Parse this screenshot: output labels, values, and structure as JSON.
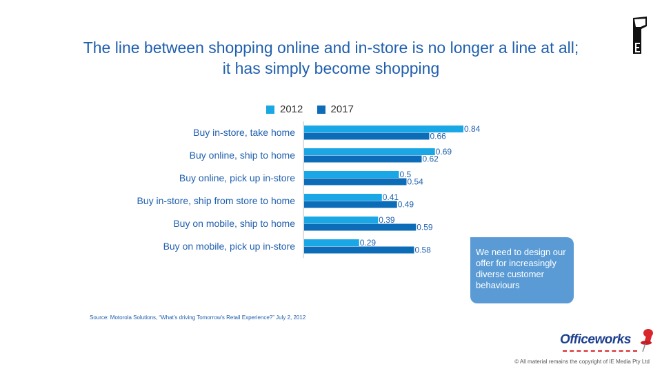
{
  "title_line1": "The line between shopping online and in-store is no longer a line at all;",
  "title_line2": "it has simply become shopping",
  "callout_text": "We need to design our offer for increasingly diverse customer behaviours",
  "source": "Source: Motorola Solutions, “What's driving Tomorrow's Retail Experience?” July 2, 2012",
  "copyright": "© All material remains the copyright of IE Media Pty Ltd",
  "logo_text": "Officeworks",
  "colors": {
    "s2012": "#1aa7e6",
    "s2017": "#0d6cb8",
    "callout": "#5a9bd5"
  },
  "chart_data": {
    "type": "bar",
    "orientation": "horizontal",
    "categories": [
      "Buy in-store, take home",
      "Buy online, ship to home",
      "Buy online, pick up in-store",
      "Buy in-store, ship from store to home",
      "Buy on mobile, ship to home",
      "Buy on mobile, pick up in-store"
    ],
    "series": [
      {
        "name": "2012",
        "values": [
          0.84,
          0.69,
          0.5,
          0.41,
          0.39,
          0.29
        ]
      },
      {
        "name": "2017",
        "values": [
          0.66,
          0.62,
          0.54,
          0.49,
          0.59,
          0.58
        ]
      }
    ],
    "xlim": [
      0,
      1
    ],
    "grid": false,
    "legend_position": "top"
  }
}
